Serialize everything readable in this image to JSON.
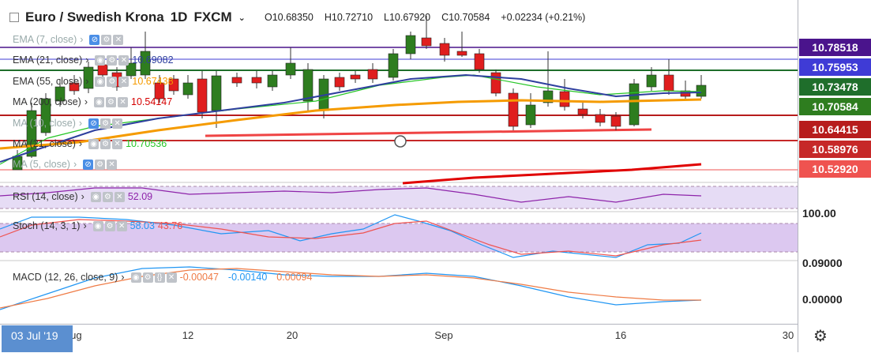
{
  "header": {
    "symbol": "Euro / Swedish Krona",
    "interval": "1D",
    "source": "FXCM",
    "open": "O10.68350",
    "high": "H10.72710",
    "low": "L10.67920",
    "close": "C10.70584",
    "change": "+0.02234 (+0.21%)"
  },
  "indicators": [
    {
      "label": "EMA (7, close)",
      "value": "",
      "color": "#9aa"
    },
    {
      "label": "EMA (21, close)",
      "value": "10.69082",
      "color": "#2e3f9e"
    },
    {
      "label": "EMA (55, close)",
      "value": "10.67438",
      "color": "#f59b00"
    },
    {
      "label": "MA (200, close)",
      "value": "10.54147",
      "color": "#d50000"
    },
    {
      "label": "MA (10, close)",
      "value": "",
      "color": "#9aa"
    },
    {
      "label": "MA (21, close)",
      "value": "10.70536",
      "color": "#26c626"
    },
    {
      "label": "MA (5, close)",
      "value": "",
      "color": "#9aa"
    }
  ],
  "price_labels": [
    {
      "text": "10.78518",
      "color": "#4a148c"
    },
    {
      "text": "10.75953",
      "color": "#3f3bd6"
    },
    {
      "text": "10.73478",
      "color": "#1f6e2b"
    },
    {
      "text": "10.70584",
      "color": "#2e7d1f"
    },
    {
      "text": "10.64415",
      "color": "#b71c1c"
    },
    {
      "text": "10.58976",
      "color": "#c62828"
    },
    {
      "text": "10.52920",
      "color": "#ef5350"
    }
  ],
  "rsi": {
    "label": "RSI (14, close)",
    "value": "52.09"
  },
  "stoch": {
    "label": "Stoch (14, 3, 1)",
    "k": "58.03",
    "d": "43.76",
    "axis_top": "100.00",
    "axis_bottom": "0.09000"
  },
  "macd": {
    "label": "MACD (12, 26, close, 9)",
    "v1": "-0.00047",
    "v2": "-0.00140",
    "v3": "0.00094",
    "axis": "0.00000"
  },
  "xaxis": {
    "labels": [
      "Aug",
      "12",
      "20",
      "Sep",
      "16",
      "30"
    ],
    "current_date": "03 Jul '19"
  }
}
